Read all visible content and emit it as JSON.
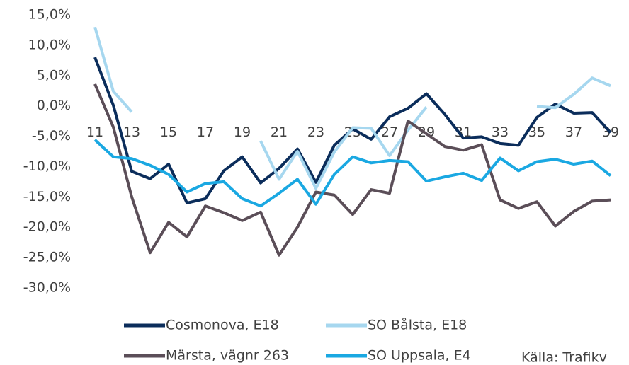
{
  "chart_data": {
    "type": "line",
    "categories": [
      "11",
      null,
      "13",
      null,
      "15",
      null,
      "17",
      null,
      "19",
      null,
      "21",
      null,
      "23",
      null,
      "25",
      null,
      "27",
      null,
      "29",
      null,
      "31",
      null,
      "33",
      null,
      "35",
      null,
      "37",
      null,
      "39"
    ],
    "series": [
      {
        "name": "Cosmonova, E18",
        "color": "#0b2d5b",
        "values": [
          8.0,
          0.1,
          -10.8,
          -12.0,
          -9.6,
          -16.0,
          -15.3,
          -10.7,
          -8.4,
          -12.7,
          -10.3,
          -7.1,
          -12.6,
          -6.5,
          -3.8,
          -5.5,
          -1.8,
          -0.4,
          2.0,
          -1.4,
          -5.3,
          -5.1,
          -6.2,
          -6.5,
          -1.9,
          0.3,
          -1.2,
          -1.1,
          -4.4
        ]
      },
      {
        "name": "SO Bålsta, E18",
        "color": "#a6d7ef",
        "values": [
          13.0,
          2.4,
          -1.0,
          null,
          null,
          null,
          null,
          null,
          null,
          -5.8,
          -12.1,
          -7.5,
          -13.6,
          -7.6,
          -3.6,
          -3.7,
          -8.2,
          -4.0,
          -0.2,
          null,
          null,
          null,
          null,
          null,
          -0.1,
          -0.3,
          1.9,
          4.6,
          3.3
        ]
      },
      {
        "name": "Märsta, vägnr 263",
        "color": "#5b4e58",
        "values": [
          3.6,
          -3.5,
          -15.0,
          -24.2,
          -19.2,
          -21.6,
          -16.5,
          -17.6,
          -18.9,
          -17.5,
          -24.6,
          -20.0,
          -14.2,
          -14.7,
          -17.9,
          -13.8,
          -14.4,
          -2.5,
          -4.6,
          -6.7,
          -7.3,
          -6.4,
          -15.5,
          -16.9,
          -15.8,
          -19.8,
          -17.4,
          -15.7,
          -15.5
        ]
      },
      {
        "name": "SO Uppsala, E4",
        "color": "#1aa8e2",
        "values": [
          -5.6,
          -8.4,
          -8.7,
          -9.8,
          -11.3,
          -14.2,
          -12.8,
          -12.5,
          -15.3,
          -16.5,
          -14.4,
          -12.1,
          -16.2,
          -11.3,
          -8.4,
          -9.4,
          -9.0,
          -9.2,
          -12.4,
          -11.7,
          -11.1,
          -12.3,
          -8.6,
          -10.7,
          -9.2,
          -8.8,
          -9.6,
          -9.1,
          -11.5
        ]
      }
    ],
    "ylim": [
      -30,
      15
    ],
    "yticks": [
      {
        "value": -30,
        "label": "-30,0%"
      },
      {
        "value": -25,
        "label": "-25,0%"
      },
      {
        "value": -20,
        "label": "-20,0%"
      },
      {
        "value": -15,
        "label": "-15,0%"
      },
      {
        "value": -10,
        "label": "-10,0%"
      },
      {
        "value": -5,
        "label": "-5,0%"
      },
      {
        "value": 0,
        "label": "0,0%"
      },
      {
        "value": 5,
        "label": "5,0%"
      },
      {
        "value": 10,
        "label": "10,0%"
      },
      {
        "value": 15,
        "label": "15,0%"
      }
    ],
    "grid": false,
    "annotation": "Källa: Trafikv"
  }
}
